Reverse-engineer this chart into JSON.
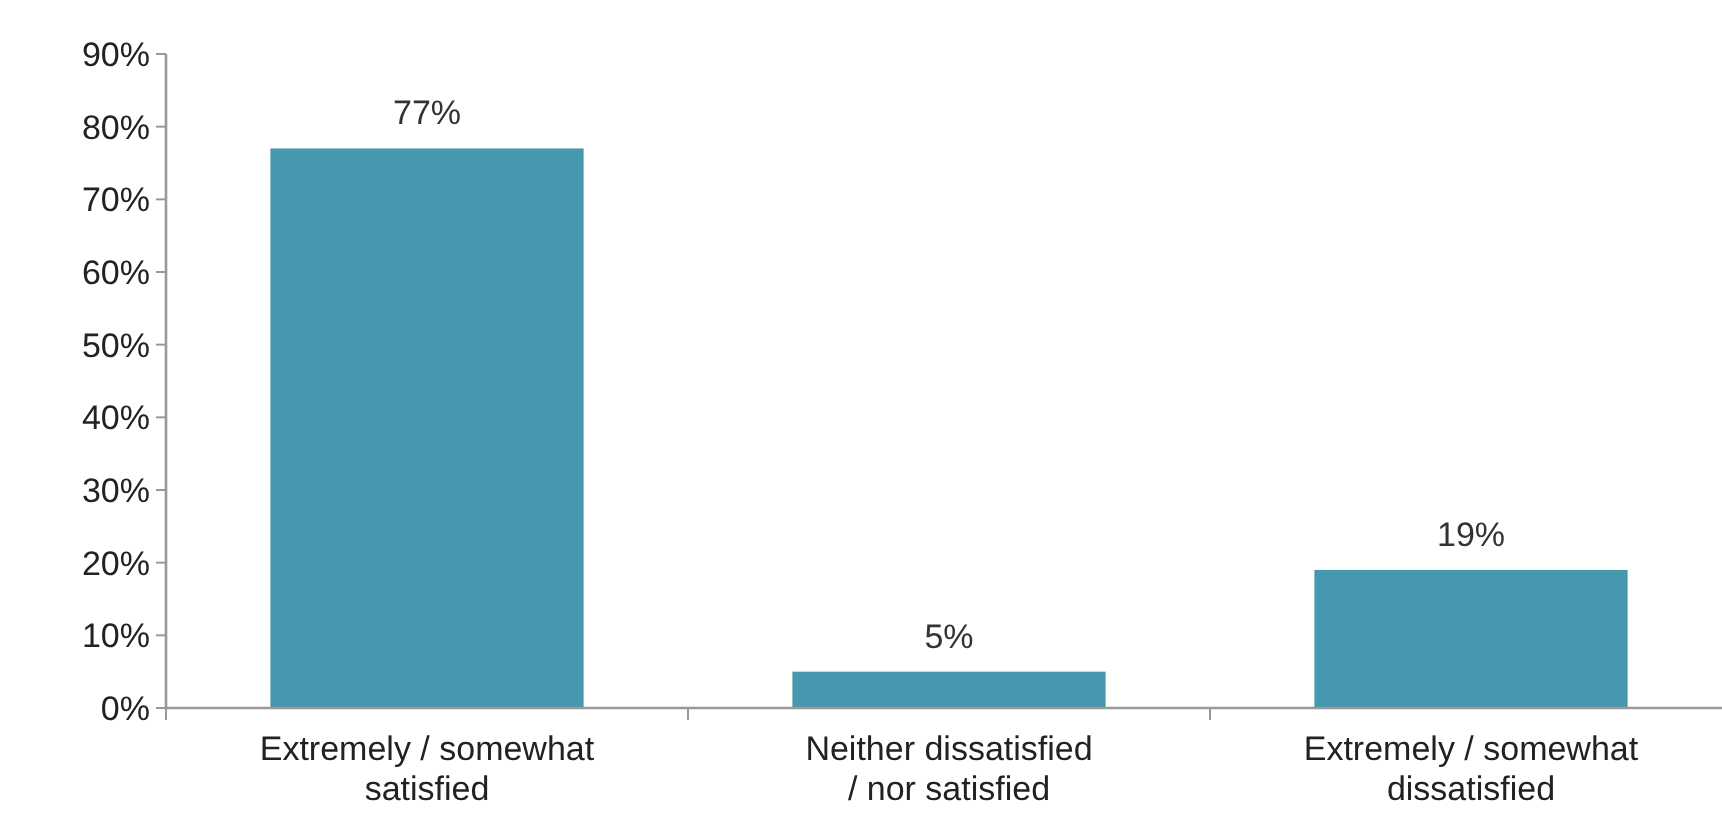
{
  "chart_data": {
    "type": "bar",
    "categories": [
      "Extremely / somewhat satisfied",
      "Neither dissatisfied / nor satisfied",
      "Extremely / somewhat dissatisfied"
    ],
    "values": [
      77,
      5,
      19
    ],
    "value_labels": [
      "77%",
      "5%",
      "19%"
    ],
    "color": "#4598ae",
    "ylim": [
      0,
      90
    ],
    "yticks": [
      {
        "value": 0,
        "label": "0%"
      },
      {
        "value": 10,
        "label": "10%"
      },
      {
        "value": 20,
        "label": "20%"
      },
      {
        "value": 30,
        "label": "30%"
      },
      {
        "value": 40,
        "label": "40%"
      },
      {
        "value": 50,
        "label": "50%"
      },
      {
        "value": 60,
        "label": "60%"
      },
      {
        "value": 70,
        "label": "70%"
      },
      {
        "value": 80,
        "label": "80%"
      },
      {
        "value": 90,
        "label": "90%"
      }
    ],
    "grid": false
  }
}
